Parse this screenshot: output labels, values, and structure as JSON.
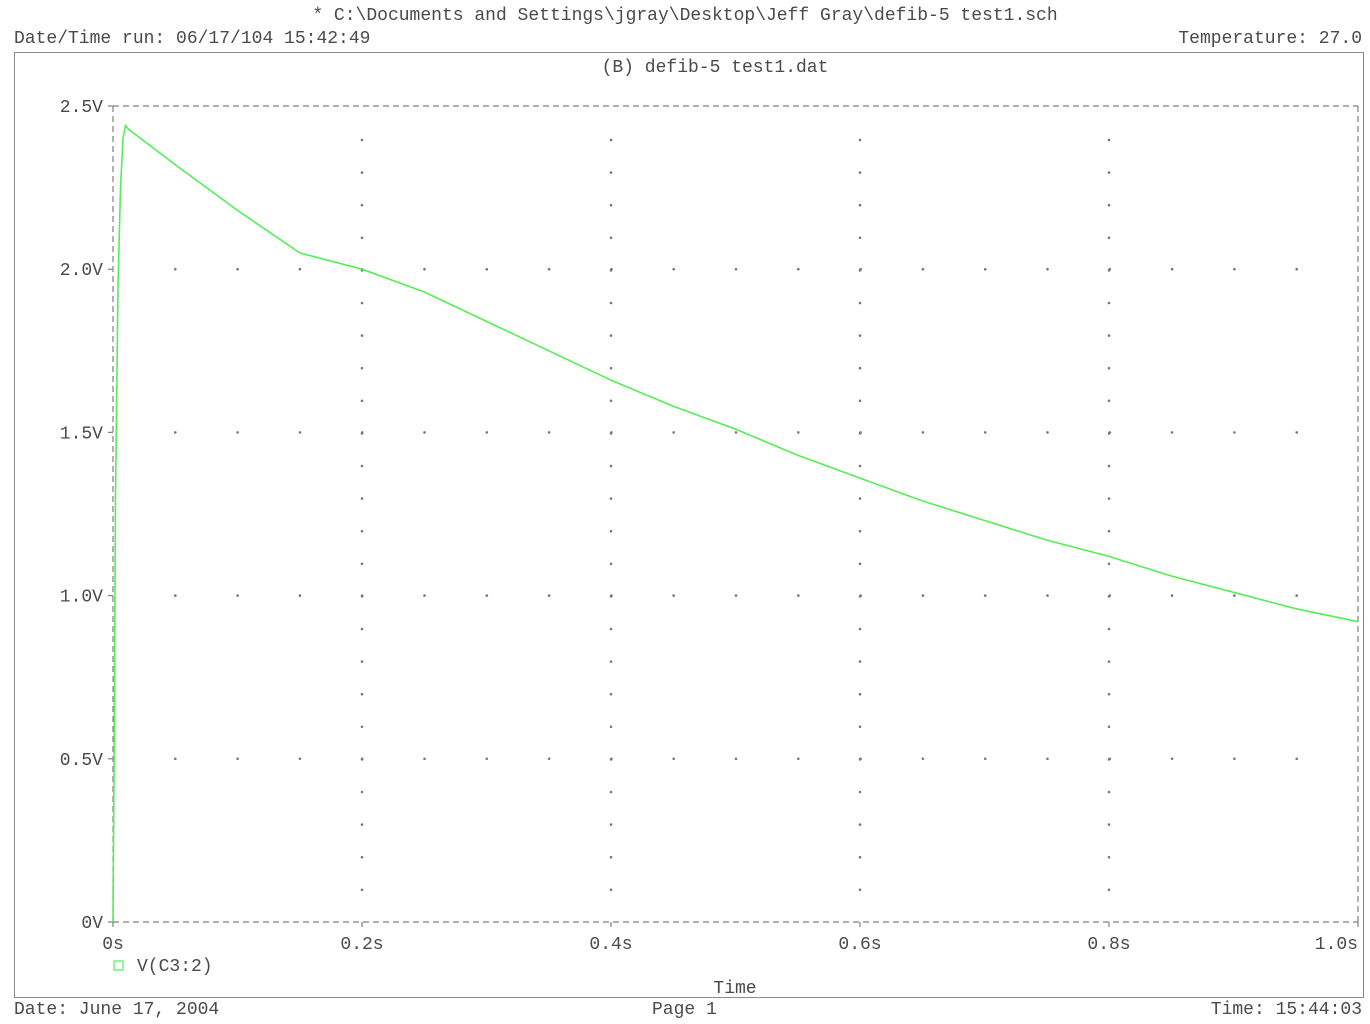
{
  "header": {
    "file_path": "* C:\\Documents and Settings\\jgray\\Desktop\\Jeff Gray\\defib-5 test1.sch",
    "run_datetime": "Date/Time run: 06/17/104 15:42:49",
    "temperature": "Temperature: 27.0"
  },
  "footer": {
    "date": "Date: June 17, 2004",
    "page": "Page 1",
    "time": "Time: 15:44:03"
  },
  "colors": {
    "trace": "#55ee55",
    "axis": "#808080",
    "grid_dot": "#777777"
  },
  "chart_data": {
    "type": "line",
    "title": "(B) defib-5 test1.dat",
    "xlabel": "Time",
    "ylabel": "",
    "xlim": [
      0,
      1.0
    ],
    "ylim": [
      0,
      2.5
    ],
    "grid": "dotted",
    "legend_position": "bottom-left",
    "x_ticks": [
      0,
      0.2,
      0.4,
      0.6,
      0.8,
      1.0
    ],
    "x_tick_labels": [
      "0s",
      "0.2s",
      "0.4s",
      "0.6s",
      "0.8s",
      "1.0s"
    ],
    "y_ticks": [
      0,
      0.5,
      1.0,
      1.5,
      2.0,
      2.5
    ],
    "y_tick_labels": [
      "0V",
      "0.5V",
      "1.0V",
      "1.5V",
      "2.0V",
      "2.5V"
    ],
    "series": [
      {
        "name": "V(C3:2)",
        "x": [
          0,
          0.001,
          0.002,
          0.004,
          0.006,
          0.008,
          0.01,
          0.012,
          0.05,
          0.1,
          0.15,
          0.2,
          0.25,
          0.3,
          0.35,
          0.4,
          0.45,
          0.5,
          0.55,
          0.6,
          0.65,
          0.7,
          0.75,
          0.8,
          0.85,
          0.9,
          0.95,
          1.0
        ],
        "values": [
          0,
          0.55,
          1.3,
          1.95,
          2.25,
          2.4,
          2.44,
          2.43,
          2.32,
          2.18,
          2.05,
          2.0,
          1.93,
          1.84,
          1.75,
          1.66,
          1.58,
          1.51,
          1.43,
          1.36,
          1.29,
          1.23,
          1.17,
          1.12,
          1.06,
          1.01,
          0.96,
          0.92
        ]
      }
    ]
  }
}
